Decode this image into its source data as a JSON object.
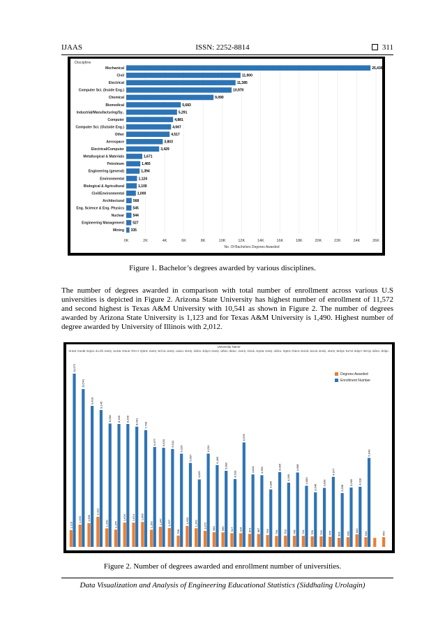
{
  "header": {
    "journal": "IJAAS",
    "issn": "ISSN: 2252-8814",
    "page": "311"
  },
  "figure1": {
    "caption": "Figure 1. Bachelor’s degrees awarded by various disciplines.",
    "chart_data": {
      "type": "bar",
      "orientation": "horizontal",
      "title": "Discipline",
      "xlabel": "No. Of Bachelors Degrees Awarded",
      "xlim": [
        0,
        26000
      ],
      "xticks": [
        "0K",
        "2K",
        "4K",
        "6K",
        "8K",
        "10K",
        "12K",
        "14K",
        "16K",
        "18K",
        "20K",
        "22K",
        "24K",
        "26K"
      ],
      "color": "#2e74b5",
      "categories": [
        "Mechanical",
        "Civil",
        "Electrical",
        "Computer Sci. (Inside Eng.)",
        "Chemical",
        "Biomedical",
        "Industrial/Manufacturing/Sy..",
        "Computer",
        "Computer Sci. (Outside Eng.)",
        "Other",
        "Aerospace",
        "Electrical/Computer",
        "Metallurgical & Materials",
        "Petroleum",
        "Engineering (general)",
        "Environmental",
        "Biological & Agricultural",
        "Civil/Environmental",
        "Architectural",
        "Eng. Science & Eng. Physics",
        "Nuclear",
        "Engineering Management",
        "Mining"
      ],
      "values": [
        25436,
        11900,
        11385,
        10970,
        9090,
        5683,
        5291,
        4881,
        4667,
        4517,
        3803,
        3429,
        1671,
        1465,
        1394,
        1124,
        1100,
        1000,
        568,
        545,
        544,
        527,
        335
      ],
      "value_labels": [
        "25,436",
        "11,900",
        "11,385",
        "10,970",
        "9,090",
        "5,683",
        "5,291",
        "4,881",
        "4,667",
        "4,517",
        "3,803",
        "3,429",
        "1,671",
        "1,465",
        "1,394",
        "1,124",
        "1,100",
        "1,000",
        "568",
        "545",
        "544",
        "527",
        "335"
      ]
    }
  },
  "paragraph": "The number of degrees awarded in comparison with total number of enrollment across various U.S universities is depicted in Figure 2. Arizona State University has highest number of enrollment of 11,572 and second highest is Texas A&M University with 10,541 as shown in Figure 2. The number of degrees awarded by Arizona State University is 1,123 and for Texas A&M University is 1,490. Highest number of degree awarded by University of Illinois with 2,012.",
  "figure2": {
    "caption": "Figure 2. Number of degrees awarded and enrollment number of universities.",
    "chart_data": {
      "type": "bar",
      "title": "University Name",
      "categories": [
        "Ariz ona St..",
        "Tex as A&M..",
        "Geo rgia Ins..",
        "Uni v. of Illi..",
        "Uni vers ity ..",
        "Iow a St ate..",
        "Pur due Uni..",
        "The Pen n.. Te..",
        "Virg inia Tec..",
        "Uni vers ity ..",
        "Nort h C aro..",
        "Uni vers ity ..",
        "Loui sian a S..",
        "Uni vers ity ..",
        "Cali forn ia ..",
        "Mic higa n St..",
        "Uni vers ity ..",
        "Cali forn ia ..",
        "Mis sou ri ..",
        "Uni vers ity ..",
        "Col ora do ..",
        "Ore gon Sta..",
        "Uni vers ity ..",
        "Cali forn ia ..",
        "Rut gers Uni..",
        "Flori da I nte..",
        "Dre xel Uni..",
        "Aub urn Uni..",
        "Uni vers ity ..",
        "Uni vers ity ..",
        "Was hing ton..",
        "Tex as T ech..",
        "Mic higa n T..",
        "Wes t Vir gin..",
        "Cali forn ia ..",
        "Mic higa n .."
      ],
      "series": [
        {
          "name": "Degrees Awarded",
          "color": "#ed7d31",
          "values": [
            1123,
            1490,
            1585,
            2012,
            1239,
            1155,
            1626,
            1624,
            1666,
            1150,
            1347,
            1257,
            758,
            1403,
            1243,
            1072,
            980,
            969,
            917,
            916,
            873,
            867,
            796,
            734,
            753,
            745,
            741,
            709,
            703,
            676,
            604,
            649,
            841,
            644,
            601,
            650
          ],
          "labels": [
            "1,123",
            "1,490",
            "1,585",
            "2,012",
            "1,239",
            "1,155",
            "1,626",
            "1,624",
            "1,666",
            "1,150",
            "1,347",
            "1,257",
            "758",
            "1,403",
            "1,243",
            "1,072",
            "980",
            "969",
            "917",
            "916",
            "873",
            "867",
            "796",
            "734",
            "753",
            "745",
            "741",
            "709",
            "703",
            "676",
            "604",
            "649",
            "841",
            "644",
            "",
            "650"
          ]
        },
        {
          "name": "Enrollment Number",
          "color": "#2e74b5",
          "values": [
            11572,
            10541,
            9418,
            9145,
            8238,
            8209,
            8209,
            8031,
            7799,
            6677,
            6620,
            6541,
            6226,
            5607,
            4505,
            6231,
            5465,
            5082,
            4533,
            6978,
            4841,
            4789,
            3836,
            4995,
            4289,
            4968,
            4083,
            3646,
            3939,
            4677,
            3598,
            3965,
            4018,
            5943,
            0,
            0
          ],
          "labels": [
            "11,572",
            "10,541",
            "9,418",
            "9,145",
            "8,238",
            "8,209",
            "8,209",
            "8,031",
            "7,799",
            "6,677",
            "6,620",
            "6,541",
            "6,226",
            "5,607",
            "4,505",
            "6,231",
            "5,465",
            "5,082",
            "4,533",
            "6,978",
            "4,841",
            "4,789",
            "3,836",
            "4,995",
            "4,289",
            "4,968",
            "4,083",
            "3,646",
            "3,939",
            "4,677",
            "3,598",
            "3,965",
            "4,018",
            "5,943",
            "",
            ""
          ]
        }
      ],
      "ylim": [
        0,
        12500
      ],
      "legend": "top-right"
    }
  },
  "footer": "Data Visualization and Analysis of Engineering Educational Statistics (Siddhaling Urolagin)"
}
